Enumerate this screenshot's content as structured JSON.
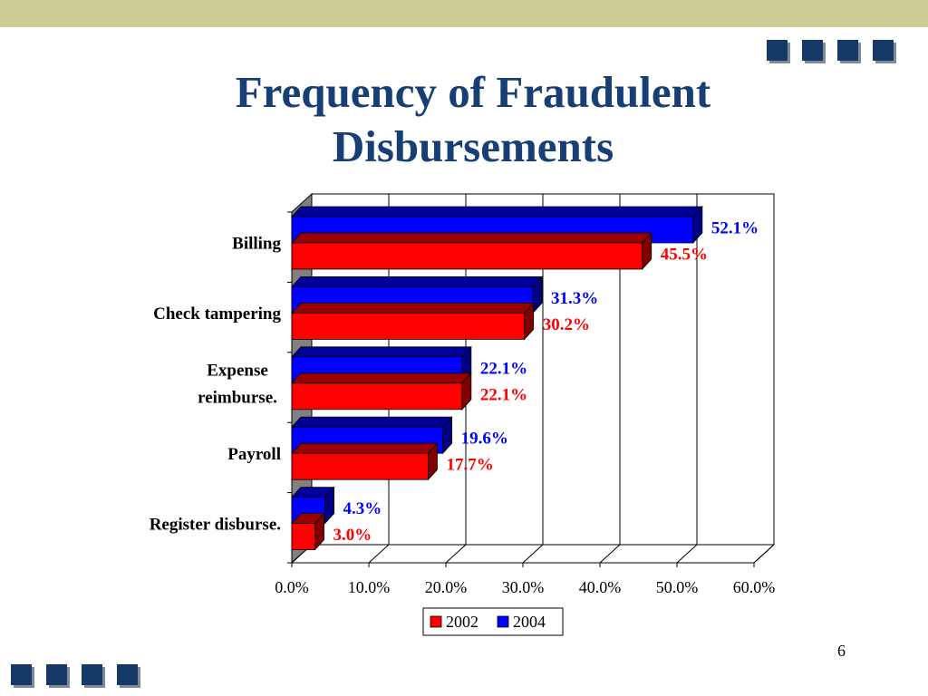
{
  "slide": {
    "title_line1": "Frequency of Fraudulent",
    "title_line2": "Disbursements",
    "page_number": "6"
  },
  "colors": {
    "accent_bar": "#cfcd96",
    "title": "#183f75",
    "square": "#153a67",
    "series_2002": "#ff0000",
    "series_2004": "#0000ff"
  },
  "chart_data": {
    "type": "bar",
    "orientation": "horizontal",
    "three_d": true,
    "categories": [
      "Billing",
      "Check tampering",
      "Expense reimburse.",
      "Payroll",
      "Register disburse."
    ],
    "category_labels": [
      [
        "Billing"
      ],
      [
        "Check tampering"
      ],
      [
        "Expense",
        "reimburse."
      ],
      [
        "Payroll"
      ],
      [
        "Register disburse."
      ]
    ],
    "series": [
      {
        "name": "2002",
        "color": "#ff0000",
        "values": [
          45.5,
          30.2,
          22.1,
          17.7,
          3.0
        ],
        "labels": [
          "45.5%",
          "30.2%",
          "22.1%",
          "17.7%",
          "3.0%"
        ]
      },
      {
        "name": "2004",
        "color": "#0000ff",
        "values": [
          52.1,
          31.3,
          22.1,
          19.6,
          4.3
        ],
        "labels": [
          "52.1%",
          "31.3%",
          "22.1%",
          "19.6%",
          "4.3%"
        ]
      }
    ],
    "xlim": [
      0,
      60
    ],
    "xticks": [
      "0.0%",
      "10.0%",
      "20.0%",
      "30.0%",
      "40.0%",
      "50.0%",
      "60.0%"
    ],
    "grid": true,
    "legend": "bottom-center"
  }
}
